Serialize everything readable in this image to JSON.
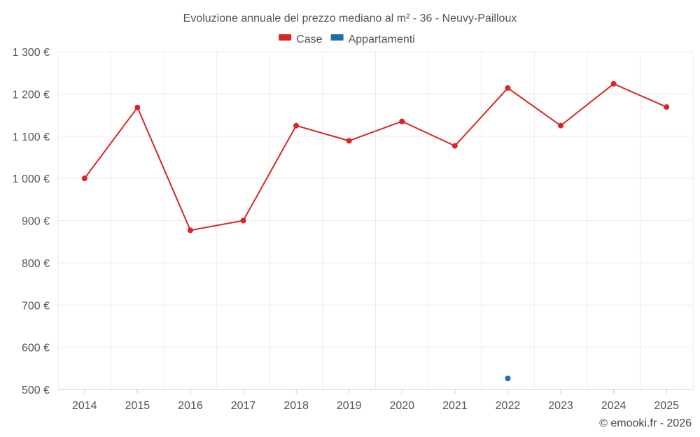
{
  "chart_data": {
    "type": "line",
    "title": "Evoluzione annuale del prezzo mediano al m² - 36 - Neuvy-Pailloux",
    "x": [
      "2014",
      "2015",
      "2016",
      "2017",
      "2018",
      "2019",
      "2020",
      "2021",
      "2022",
      "2023",
      "2024",
      "2025"
    ],
    "series": [
      {
        "name": "Case",
        "color": "#d62728",
        "values": [
          1000,
          1168,
          877,
          900,
          1125,
          1089,
          1135,
          1077,
          1214,
          1125,
          1224,
          1169
        ]
      },
      {
        "name": "Appartamenti",
        "color": "#1f6fa8",
        "values": [
          null,
          null,
          null,
          null,
          null,
          null,
          null,
          null,
          526,
          null,
          null,
          null
        ]
      }
    ],
    "yticks": [
      "500 €",
      "600 €",
      "700 €",
      "800 €",
      "900 €",
      "1 000 €",
      "1 100 €",
      "1 200 €",
      "1 300 €"
    ],
    "ytick_values": [
      500,
      600,
      700,
      800,
      900,
      1000,
      1100,
      1200,
      1300
    ],
    "ylim": [
      500,
      1300
    ],
    "grid": true,
    "legend_position": "top-center"
  },
  "credit": "© emooki.fr - 2026"
}
